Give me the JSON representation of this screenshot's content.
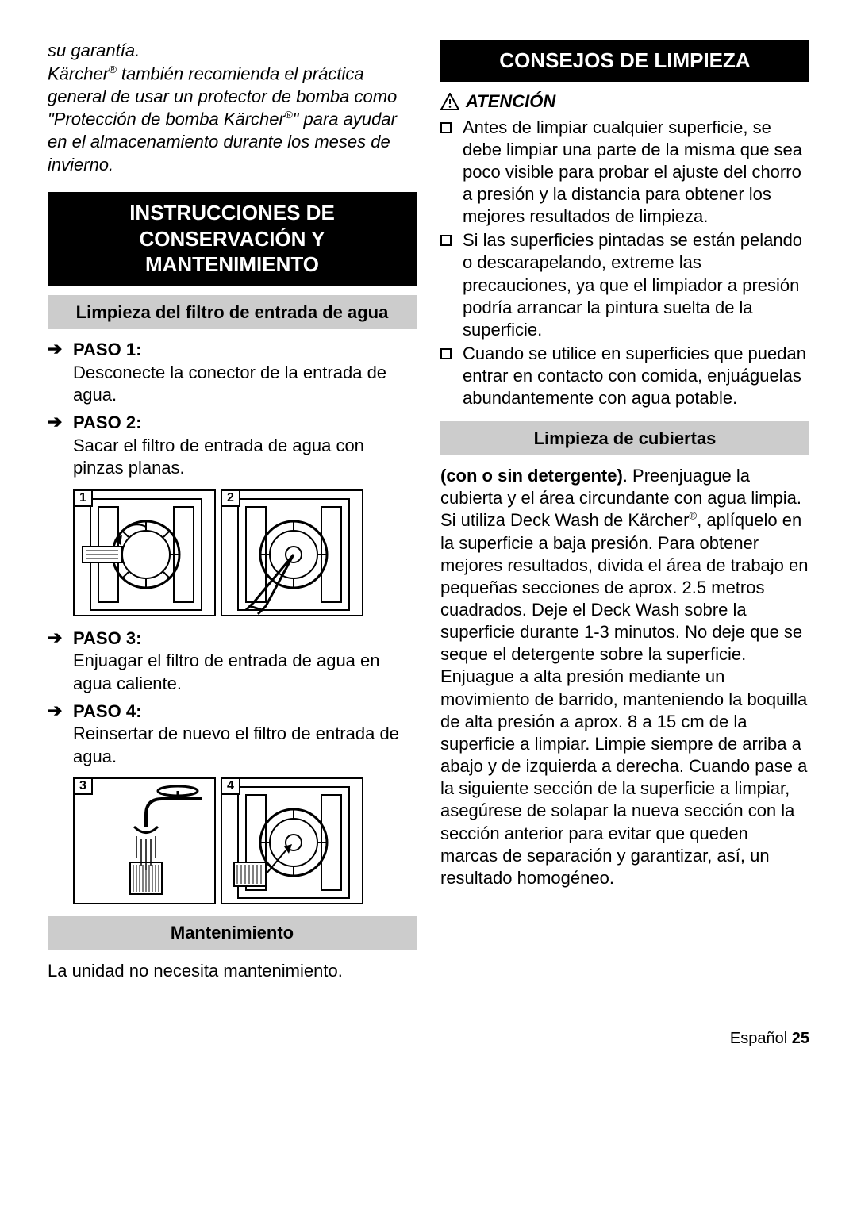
{
  "left": {
    "intro_html": "su garantía.<br>Kärcher<span class=\"reg\">®</span> también recomienda el práctica general de usar un protector de bomba como \"Protección de bomba Kärcher<span class=\"reg\">®</span>\" para ayudar en el almacenamiento durante los meses de invierno.",
    "heading1": "INSTRUCCIONES DE CONSERVACIÓN Y MANTENIMIENTO",
    "subhead1": "Limpieza del filtro de entrada de agua",
    "steps": [
      {
        "label": "PASO 1:",
        "text": "Desconecte la conector de la entrada de agua."
      },
      {
        "label": "PASO 2:",
        "text": "Sacar el filtro de entrada de agua con pinzas planas."
      },
      {
        "label": "PASO 3:",
        "text": "Enjuagar el filtro de entrada de agua en agua caliente."
      },
      {
        "label": "PASO 4:",
        "text": "Reinsertar de nuevo el filtro de entrada de agua."
      }
    ],
    "illus1": [
      "1",
      "2"
    ],
    "illus2": [
      "3",
      "4"
    ],
    "subhead2": "Mantenimiento",
    "maint_text": "La unidad no necesita mantenimiento."
  },
  "right": {
    "heading1": "CONSEJOS DE LIMPIEZA",
    "attention": "ATENCIÓN",
    "bullets": [
      "Antes de limpiar cualquier superficie, se debe limpiar una parte de la misma que sea poco visible para probar el ajuste del chorro a presión y la distancia para obtener los mejores resultados de limpieza.",
      "Si las superficies pintadas se están pelando o descarapelando, extreme las precauciones, ya que el limpiador a presión podría arrancar la pintura suelta de la superficie.",
      "Cuando se utilice en superficies que puedan entrar en contacto con comida, enjuáguelas abundantemente con agua potable."
    ],
    "subhead1": "Limpieza de cubiertas",
    "para_lead": "(con o sin detergente)",
    "para_body": ". Preenjuague la cubierta y el área circundante con agua limpia. Si utiliza Deck Wash de Kärcher<span class=\"reg\">®</span>, aplíquelo en la superficie a baja presión. Para obtener mejores resultados, divida el área de trabajo en pequeñas secciones de aprox. 2.5 metros cuadrados. Deje el Deck Wash sobre la superficie durante 1-3 minutos. No deje que se seque el detergente sobre la superficie. Enjuague a alta presión mediante un movimiento de barrido, manteniendo la boquilla de alta presión a aprox. 8 a 15 cm de la superficie a limpiar. Limpie siempre de arriba a abajo y de izquierda a derecha. Cuando pase a la siguiente sección de la superficie a limpiar, asegúrese de solapar la nueva sección con la sección anterior para evitar que queden marcas de separación y garantizar, así, un resultado homogéneo."
  },
  "footer": {
    "lang": "Español",
    "page": "25"
  },
  "colors": {
    "black": "#000000",
    "grey": "#cccccc",
    "white": "#ffffff"
  }
}
